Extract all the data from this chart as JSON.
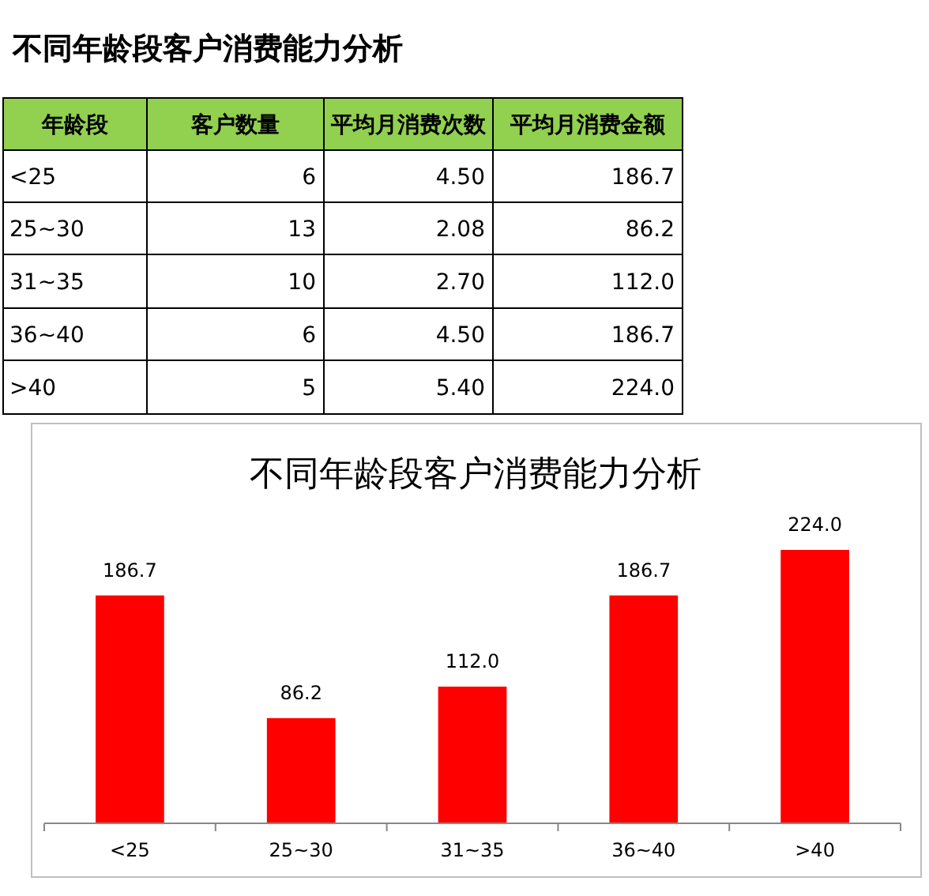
{
  "chart_data": [
    {
      "type": "other",
      "title": "不同年龄段客户消费能力分析",
      "xlabel": "年龄段",
      "categories": [
        "<25",
        "25~30",
        "31~35",
        "36~40",
        ">40"
      ],
      "series": [
        {
          "name": "客户数量",
          "values": [
            6,
            13,
            10,
            6,
            5
          ],
          "value_labels": [
            "6",
            "13",
            "10",
            "6",
            "5"
          ]
        },
        {
          "name": "平均月消费次数",
          "values": [
            4.5,
            2.08,
            2.7,
            4.5,
            5.4
          ],
          "value_labels": [
            "4.50",
            "2.08",
            "2.70",
            "4.50",
            "5.40"
          ]
        },
        {
          "name": "平均月消费金额",
          "values": [
            186.7,
            86.2,
            112,
            186.7,
            224
          ],
          "value_labels": [
            "186.7",
            "86.2",
            "112.0",
            "186.7",
            "224.0"
          ]
        }
      ]
    },
    {
      "type": "bar",
      "title": "不同年龄段客户消费能力分析",
      "categories": [
        "<25",
        "25~30",
        "31~35",
        "36~40",
        ">40"
      ],
      "values": [
        186.7,
        86.2,
        112,
        186.7,
        224
      ],
      "value_labels": [
        "186.7",
        "86.2",
        "112.0",
        "186.7",
        "224.0"
      ],
      "color": "#ff0000"
    }
  ]
}
